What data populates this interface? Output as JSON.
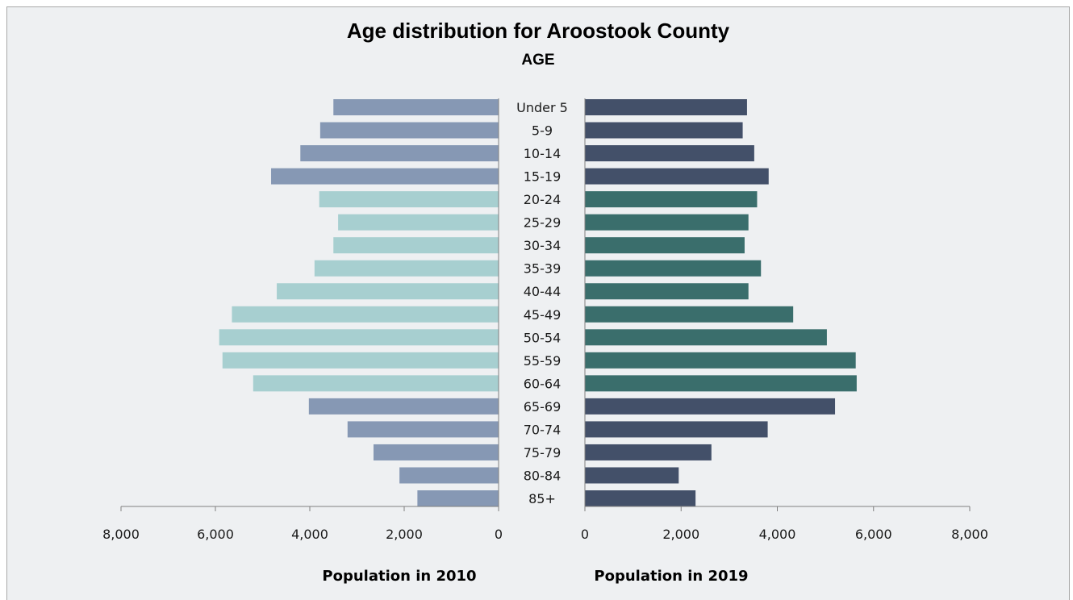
{
  "chart_data": {
    "type": "bar",
    "title": "Age distribution for Aroostook County",
    "subtitle": "AGE",
    "categories": [
      "Under 5",
      "5-9",
      "10-14",
      "15-19",
      "20-24",
      "25-29",
      "30-34",
      "35-39",
      "40-44",
      "45-49",
      "50-54",
      "55-59",
      "60-64",
      "65-69",
      "70-74",
      "75-79",
      "80-84",
      "85+"
    ],
    "series": [
      {
        "name": "Population in 2010",
        "values": [
          3500,
          3780,
          4200,
          4820,
          3800,
          3400,
          3500,
          3900,
          4700,
          5650,
          5920,
          5850,
          5200,
          4020,
          3200,
          2650,
          2100,
          1720
        ]
      },
      {
        "name": "Population in 2019",
        "values": [
          3370,
          3280,
          3520,
          3820,
          3580,
          3400,
          3320,
          3660,
          3400,
          4330,
          5030,
          5630,
          5650,
          5200,
          3800,
          2630,
          1950,
          2300
        ]
      }
    ],
    "left_axis": {
      "ticks": [
        8000,
        6000,
        4000,
        2000,
        0
      ],
      "tick_labels": [
        "8,000",
        "6,000",
        "4,000",
        "2,000",
        "0"
      ],
      "range": [
        0,
        8000
      ],
      "reversed": true
    },
    "right_axis": {
      "ticks": [
        0,
        2000,
        4000,
        6000,
        8000
      ],
      "tick_labels": [
        "0",
        "2,000",
        "4,000",
        "6,000",
        "8,000"
      ],
      "range": [
        0,
        8000
      ]
    },
    "xlabel_left": "Population in 2010",
    "xlabel_right": "Population in 2019",
    "grid": false,
    "colors": {
      "left_youth_senior": "#8698b4",
      "left_working": "#a7cfd0",
      "right_youth_senior": "#435069",
      "right_working": "#3a6e6c",
      "axis": "#808080"
    },
    "color_groups": {
      "working_age": [
        "20-24",
        "25-29",
        "30-34",
        "35-39",
        "40-44",
        "45-49",
        "50-54",
        "55-59",
        "60-64"
      ]
    }
  }
}
